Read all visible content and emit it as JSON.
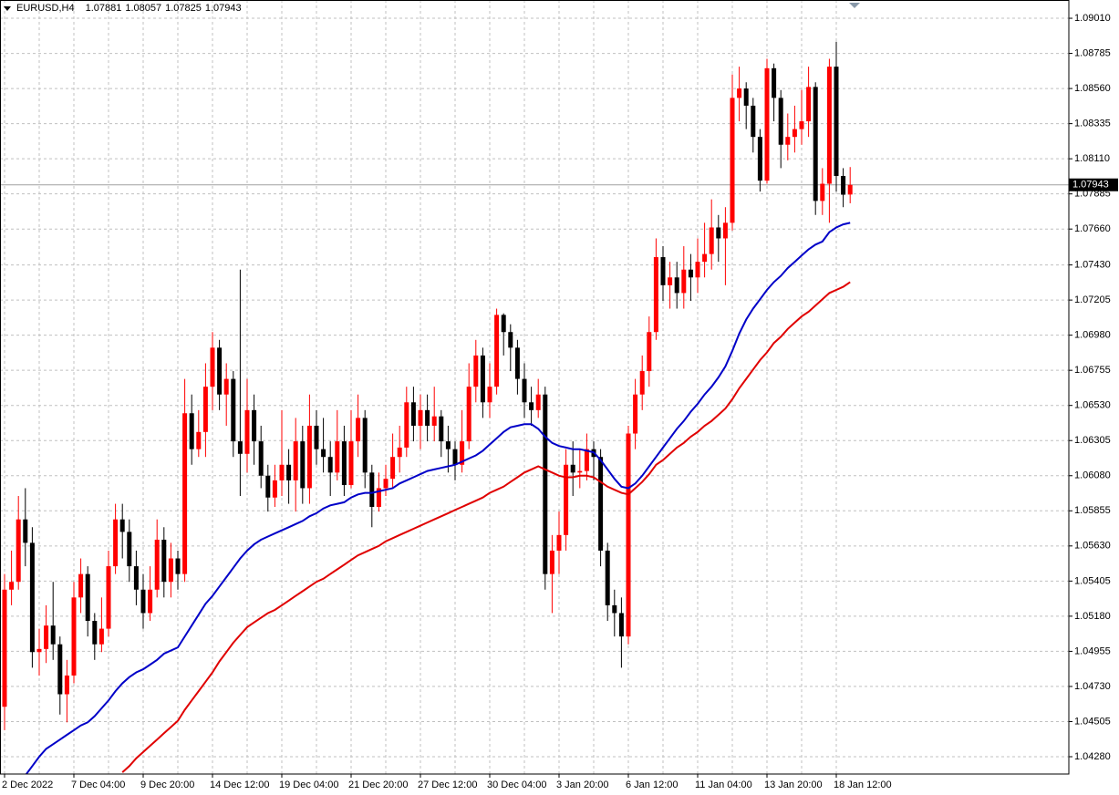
{
  "chart_data": {
    "type": "candlestick",
    "title": "EURUSD,H4",
    "quote": [
      1.07881,
      1.08057,
      1.07825,
      1.07943
    ],
    "current_price": 1.07943,
    "up_color": "#ff0000",
    "down_color": "#000000",
    "grid": true,
    "ylim": [
      1.04169,
      1.09127
    ],
    "yticks": [
      {
        "value": 1.0901,
        "label": "1.09010"
      },
      1.08785,
      {
        "value": 1.0856,
        "label": "1.08560"
      },
      1.08335,
      {
        "value": 1.0811,
        "label": "1.08110"
      },
      1.07885,
      {
        "value": 1.0766,
        "label": "1.07660"
      },
      {
        "value": 1.0743,
        "label": "1.07430"
      },
      1.07205,
      {
        "value": 1.0698,
        "label": "1.06980"
      },
      1.06755,
      {
        "value": 1.0653,
        "label": "1.06530"
      },
      1.06305,
      {
        "value": 1.0608,
        "label": "1.06080"
      },
      1.05855,
      {
        "value": 1.0563,
        "label": "1.05630"
      },
      1.05405,
      {
        "value": 1.0518,
        "label": "1.05180"
      },
      1.04955,
      {
        "value": 1.0473,
        "label": "1.04730"
      },
      1.04505,
      {
        "value": 1.0428,
        "label": "1.04280"
      }
    ],
    "categories": [
      "2 Dec 2022",
      null,
      null,
      null,
      null,
      null,
      null,
      null,
      null,
      null,
      "7 Dec 04:00",
      null,
      null,
      null,
      null,
      null,
      null,
      null,
      null,
      null,
      "9 Dec 20:00",
      null,
      null,
      null,
      null,
      null,
      null,
      null,
      null,
      null,
      "14 Dec 12:00",
      null,
      null,
      null,
      null,
      null,
      null,
      null,
      null,
      null,
      "19 Dec 04:00",
      null,
      null,
      null,
      null,
      null,
      null,
      null,
      null,
      null,
      "21 Dec 20:00",
      null,
      null,
      null,
      null,
      null,
      null,
      null,
      null,
      null,
      "27 Dec 12:00",
      null,
      null,
      null,
      null,
      null,
      null,
      null,
      null,
      null,
      "30 Dec 04:00",
      null,
      null,
      null,
      null,
      null,
      null,
      null,
      null,
      null,
      "3 Jan 20:00",
      null,
      null,
      null,
      null,
      null,
      null,
      null,
      null,
      null,
      "6 Jan 12:00",
      null,
      null,
      null,
      null,
      null,
      null,
      null,
      null,
      null,
      "11 Jan 04:00",
      null,
      null,
      null,
      null,
      null,
      null,
      null,
      null,
      null,
      "13 Jan 20:00",
      null,
      null,
      null,
      null,
      null,
      null,
      null,
      null,
      null,
      "18 Jan 12:00",
      null,
      null
    ],
    "open": [
      1.046,
      1.0535,
      1.054,
      1.058,
      1.0565,
      1.0495,
      1.0497,
      1.0512,
      1.05,
      1.0468,
      1.048,
      1.053,
      1.0545,
      1.0515,
      1.05,
      1.051,
      1.055,
      1.058,
      1.0572,
      1.055,
      1.0535,
      1.052,
      1.0535,
      1.0567,
      1.054,
      1.0555,
      1.0545,
      1.0648,
      1.0625,
      1.0636,
      1.0665,
      1.069,
      1.066,
      1.067,
      1.063,
      1.0622,
      1.065,
      1.063,
      1.0608,
      1.0594,
      1.0605,
      1.0615,
      1.0605,
      1.063,
      1.06,
      1.064,
      1.0625,
      1.062,
      1.061,
      1.063,
      1.0602,
      1.063,
      1.0645,
      1.061,
      1.0588,
      1.06,
      1.0606,
      1.062,
      1.0626,
      1.0655,
      1.064,
      1.065,
      1.064,
      1.0646,
      1.063,
      1.0625,
      1.0615,
      1.063,
      1.0665,
      1.0685,
      1.0655,
      1.0665,
      1.0711,
      1.07,
      1.069,
      1.067,
      1.0655,
      1.065,
      1.066,
      1.0545,
      1.056,
      1.057,
      1.0615,
      1.061,
      1.0611,
      1.0625,
      1.062,
      1.056,
      1.0525,
      1.052,
      1.0505,
      1.0635,
      1.066,
      1.0675,
      1.07,
      1.0748,
      1.073,
      1.0735,
      1.0725,
      1.074,
      1.0735,
      1.0745,
      1.075,
      1.0767,
      1.076,
      1.077,
      1.085,
      1.0856,
      1.0845,
      1.0825,
      1.0797,
      1.0869,
      1.085,
      1.082,
      1.0825,
      1.083,
      1.0835,
      1.0857,
      1.0784,
      1.0795,
      1.087,
      1.08,
      1.07881
    ],
    "high": [
      1.0545,
      1.056,
      1.0595,
      1.06,
      1.0575,
      1.051,
      1.0525,
      1.054,
      1.0505,
      1.049,
      1.054,
      1.0555,
      1.055,
      1.052,
      1.053,
      1.056,
      1.059,
      1.059,
      1.058,
      1.056,
      1.0545,
      1.055,
      1.058,
      1.0575,
      1.0565,
      1.056,
      1.067,
      1.066,
      1.065,
      1.068,
      1.07,
      1.0695,
      1.068,
      1.0675,
      1.074,
      1.067,
      1.066,
      1.064,
      1.0615,
      1.0615,
      1.065,
      1.0625,
      1.0645,
      1.064,
      1.066,
      1.065,
      1.0645,
      1.063,
      1.065,
      1.064,
      1.065,
      1.066,
      1.065,
      1.0615,
      1.061,
      1.0615,
      1.0635,
      1.064,
      1.0665,
      1.0665,
      1.066,
      1.066,
      1.0665,
      1.065,
      1.064,
      1.063,
      1.065,
      1.068,
      1.0695,
      1.069,
      1.068,
      1.0715,
      1.0712,
      1.0705,
      1.0695,
      1.068,
      1.0665,
      1.067,
      1.0665,
      1.057,
      1.0585,
      1.0625,
      1.063,
      1.0625,
      1.0635,
      1.063,
      1.0625,
      1.0565,
      1.0535,
      1.053,
      1.064,
      1.067,
      1.0685,
      1.071,
      1.076,
      1.0755,
      1.0745,
      1.0745,
      1.0755,
      1.075,
      1.076,
      1.077,
      1.0785,
      1.0775,
      1.078,
      1.0865,
      1.087,
      1.086,
      1.085,
      1.083,
      1.0875,
      1.0872,
      1.0855,
      1.084,
      1.0845,
      1.0855,
      1.087,
      1.086,
      1.0805,
      1.0875,
      1.0886,
      1.0805,
      1.08057
    ],
    "low": [
      1.0445,
      1.0525,
      1.0535,
      1.055,
      1.0485,
      1.048,
      1.0488,
      1.049,
      1.0455,
      1.045,
      1.0475,
      1.052,
      1.0505,
      1.049,
      1.0495,
      1.0505,
      1.0545,
      1.0555,
      1.054,
      1.0525,
      1.051,
      1.0515,
      1.053,
      1.053,
      1.053,
      1.0535,
      1.054,
      1.0615,
      1.062,
      1.062,
      1.065,
      1.065,
      1.064,
      1.062,
      1.0595,
      1.061,
      1.0615,
      1.06,
      1.0585,
      1.0588,
      1.0595,
      1.059,
      1.0585,
      1.059,
      1.059,
      1.0615,
      1.061,
      1.0595,
      1.0605,
      1.0595,
      1.06,
      1.062,
      1.06,
      1.0575,
      1.0585,
      1.0595,
      1.06,
      1.061,
      1.062,
      1.063,
      1.0625,
      1.063,
      1.063,
      1.062,
      1.061,
      1.0605,
      1.061,
      1.0625,
      1.0655,
      1.0645,
      1.0645,
      1.066,
      1.0685,
      1.0675,
      1.066,
      1.0645,
      1.064,
      1.0645,
      1.0535,
      1.052,
      1.0545,
      1.056,
      1.0595,
      1.06,
      1.0605,
      1.0605,
      1.055,
      1.0515,
      1.0505,
      1.0485,
      1.05,
      1.0625,
      1.065,
      1.0665,
      1.0695,
      1.072,
      1.0715,
      1.0715,
      1.0715,
      1.072,
      1.0725,
      1.0735,
      1.074,
      1.0745,
      1.073,
      1.0765,
      1.0835,
      1.083,
      1.0815,
      1.079,
      1.0795,
      1.0835,
      1.0805,
      1.081,
      1.0815,
      1.082,
      1.0825,
      1.0775,
      1.0775,
      1.077,
      1.079,
      1.078,
      1.07825
    ],
    "close": [
      1.0535,
      1.054,
      1.058,
      1.0565,
      1.0495,
      1.0497,
      1.0512,
      1.05,
      1.0468,
      1.048,
      1.053,
      1.0545,
      1.0515,
      1.05,
      1.051,
      1.055,
      1.058,
      1.0572,
      1.055,
      1.0535,
      1.052,
      1.0535,
      1.0567,
      1.054,
      1.0555,
      1.0545,
      1.0648,
      1.0625,
      1.0636,
      1.0665,
      1.069,
      1.066,
      1.067,
      1.063,
      1.0622,
      1.065,
      1.063,
      1.0608,
      1.0594,
      1.0605,
      1.0615,
      1.0605,
      1.063,
      1.06,
      1.064,
      1.0625,
      1.062,
      1.061,
      1.063,
      1.0602,
      1.063,
      1.0645,
      1.061,
      1.0588,
      1.06,
      1.0606,
      1.062,
      1.0626,
      1.0655,
      1.064,
      1.065,
      1.064,
      1.0646,
      1.063,
      1.0625,
      1.0615,
      1.063,
      1.0665,
      1.0685,
      1.0655,
      1.0665,
      1.0711,
      1.07,
      1.069,
      1.067,
      1.0655,
      1.065,
      1.066,
      1.0545,
      1.056,
      1.057,
      1.0615,
      1.061,
      1.0611,
      1.0625,
      1.062,
      1.056,
      1.0525,
      1.052,
      1.0505,
      1.0635,
      1.066,
      1.0675,
      1.07,
      1.0748,
      1.073,
      1.0735,
      1.0725,
      1.074,
      1.0735,
      1.0745,
      1.075,
      1.0767,
      1.076,
      1.077,
      1.085,
      1.0856,
      1.0845,
      1.0825,
      1.0797,
      1.0869,
      1.085,
      1.082,
      1.0825,
      1.083,
      1.0835,
      1.0857,
      1.0784,
      1.0795,
      1.087,
      1.08,
      1.0788,
      1.07943
    ],
    "ma_lines": [
      {
        "color": "#0000c8",
        "values": [
          null,
          null,
          null,
          1.0416,
          1.0422,
          1.0428,
          1.0433,
          1.0436,
          1.0439,
          1.0442,
          1.0445,
          1.0448,
          1.045,
          1.0454,
          1.0459,
          1.0464,
          1.047,
          1.0475,
          1.0479,
          1.0482,
          1.0484,
          1.0487,
          1.049,
          1.0494,
          1.0496,
          1.0498,
          1.0505,
          1.0512,
          1.0519,
          1.0526,
          1.0531,
          1.0537,
          1.0543,
          1.0549,
          1.0555,
          1.056,
          1.0564,
          1.0567,
          1.0569,
          1.0571,
          1.0573,
          1.0575,
          1.0577,
          1.0579,
          1.0582,
          1.0584,
          1.0587,
          1.0589,
          1.059,
          1.0591,
          1.0594,
          1.0596,
          1.0597,
          1.0597,
          1.0598,
          1.0599,
          1.06,
          1.0603,
          1.0605,
          1.0607,
          1.0609,
          1.0611,
          1.0612,
          1.0613,
          1.0614,
          1.0615,
          1.0617,
          1.0619,
          1.0621,
          1.0624,
          1.0628,
          1.0632,
          1.0636,
          1.0639,
          1.064,
          1.0641,
          1.0641,
          1.0638,
          1.0633,
          1.0629,
          1.0627,
          1.0626,
          1.0625,
          1.0625,
          1.0624,
          1.0623,
          1.0618,
          1.0612,
          1.0606,
          1.0601,
          1.06,
          1.0603,
          1.0608,
          1.0614,
          1.062,
          1.0626,
          1.0632,
          1.0638,
          1.0643,
          1.0649,
          1.0654,
          1.066,
          1.0665,
          1.0671,
          1.0678,
          1.0688,
          1.0699,
          1.0708,
          1.0715,
          1.0721,
          1.0727,
          1.0732,
          1.0736,
          1.0741,
          1.0745,
          1.0749,
          1.0753,
          1.0756,
          1.0758,
          1.0764,
          1.0767,
          1.0769,
          1.077
        ]
      },
      {
        "color": "#e00000",
        "values": [
          null,
          null,
          null,
          null,
          null,
          null,
          null,
          null,
          null,
          null,
          null,
          null,
          null,
          null,
          null,
          null,
          null,
          1.0418,
          1.0422,
          1.0427,
          1.0431,
          1.0435,
          1.0439,
          1.0443,
          1.0447,
          1.0451,
          1.0458,
          1.0464,
          1.047,
          1.0476,
          1.0482,
          1.0489,
          1.0495,
          1.0501,
          1.0506,
          1.0511,
          1.0514,
          1.0517,
          1.052,
          1.0522,
          1.0525,
          1.0528,
          1.0531,
          1.0534,
          1.0537,
          1.054,
          1.0542,
          1.0545,
          1.0548,
          1.0551,
          1.0554,
          1.0557,
          1.0559,
          1.0561,
          1.0563,
          1.0566,
          1.0568,
          1.057,
          1.0572,
          1.0574,
          1.0576,
          1.0578,
          1.058,
          1.0582,
          1.0584,
          1.0586,
          1.0588,
          1.059,
          1.0592,
          1.0594,
          1.0597,
          1.0599,
          1.0601,
          1.0604,
          1.0607,
          1.061,
          1.0612,
          1.0614,
          1.0612,
          1.061,
          1.0608,
          1.0607,
          1.0607,
          1.0608,
          1.0608,
          1.0607,
          1.0604,
          1.0601,
          1.0599,
          1.0597,
          1.0596,
          1.06,
          1.0604,
          1.0609,
          1.0615,
          1.0618,
          1.0622,
          1.0626,
          1.0629,
          1.0633,
          1.0636,
          1.064,
          1.0643,
          1.0647,
          1.0651,
          1.0657,
          1.0664,
          1.067,
          1.0676,
          1.0682,
          1.0687,
          1.0693,
          1.0697,
          1.0702,
          1.0706,
          1.071,
          1.0713,
          1.0717,
          1.0721,
          1.0725,
          1.0727,
          1.0729,
          1.0732
        ]
      }
    ]
  }
}
